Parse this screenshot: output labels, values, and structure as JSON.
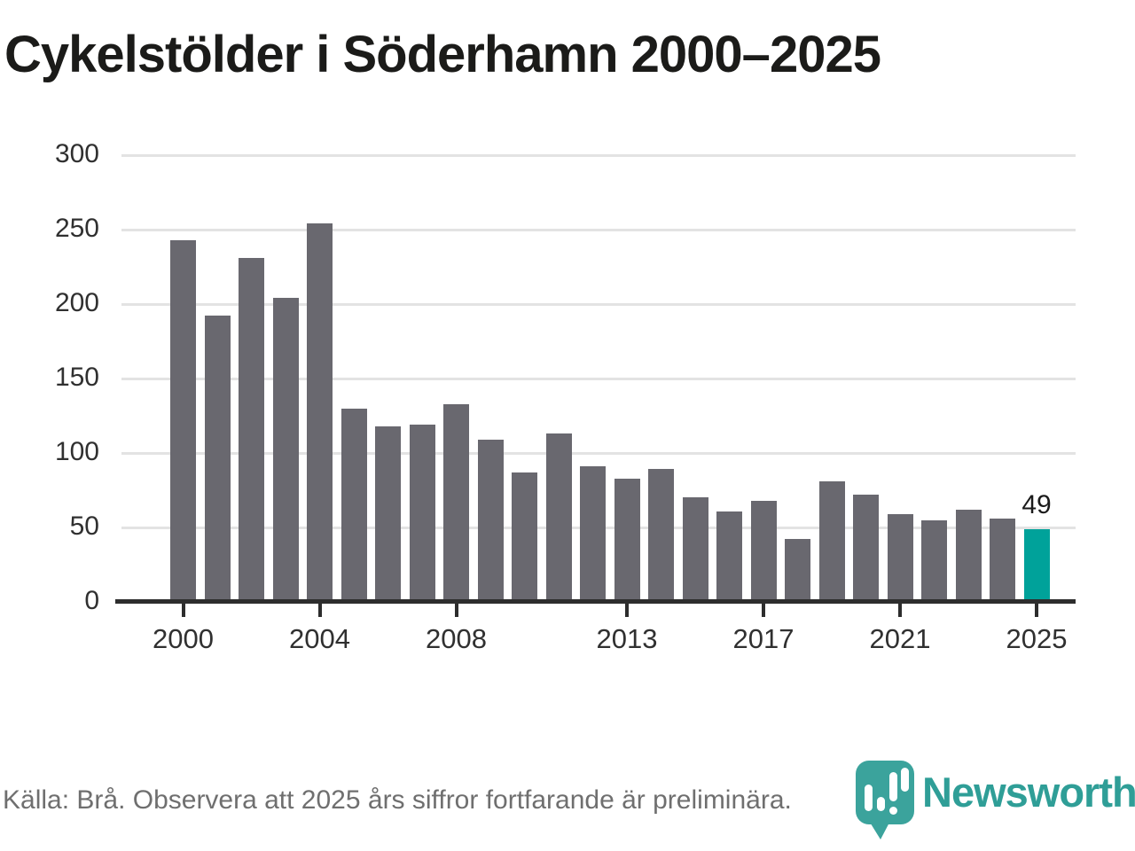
{
  "chart_data": {
    "type": "bar",
    "title": "Cykelstölder i Söderhamn 2000–2025",
    "categories": [
      2000,
      2001,
      2002,
      2003,
      2004,
      2005,
      2006,
      2007,
      2008,
      2009,
      2010,
      2011,
      2012,
      2013,
      2014,
      2015,
      2016,
      2017,
      2018,
      2019,
      2020,
      2021,
      2022,
      2023,
      2024,
      2025
    ],
    "values": [
      243,
      192,
      231,
      204,
      254,
      130,
      118,
      119,
      133,
      109,
      87,
      113,
      91,
      83,
      89,
      70,
      61,
      68,
      42,
      81,
      72,
      59,
      55,
      62,
      56,
      49
    ],
    "xlabel": "",
    "ylabel": "",
    "ylim": [
      0,
      300
    ],
    "y_ticks": [
      0,
      50,
      100,
      150,
      200,
      250,
      300
    ],
    "x_tick_labels": [
      "2000",
      "2004",
      "2008",
      "2013",
      "2017",
      "2021",
      "2025"
    ],
    "grid": "horizontal",
    "legend": "none",
    "highlight": {
      "category": 2025,
      "label": "49"
    }
  },
  "footer": {
    "source_note": "Källa: Brå. Observera att 2025 års siffror fortfarande är preliminära.",
    "brand": "Newsworthy"
  },
  "icons": {
    "logo": "newsworthy-speech-bubble-bar-chart-icon"
  },
  "colors": {
    "bar": "#69686f",
    "highlight": "#00a29a",
    "grid": "#e3e3e3",
    "axis": "#2d2d2d",
    "title": "#1b1b19",
    "tick_label": "#303030",
    "footer_text": "#6f6f6f",
    "brand_teal": "#3ba39c",
    "wordmark_teal": "#2f9e97",
    "background": "#ffffff"
  }
}
